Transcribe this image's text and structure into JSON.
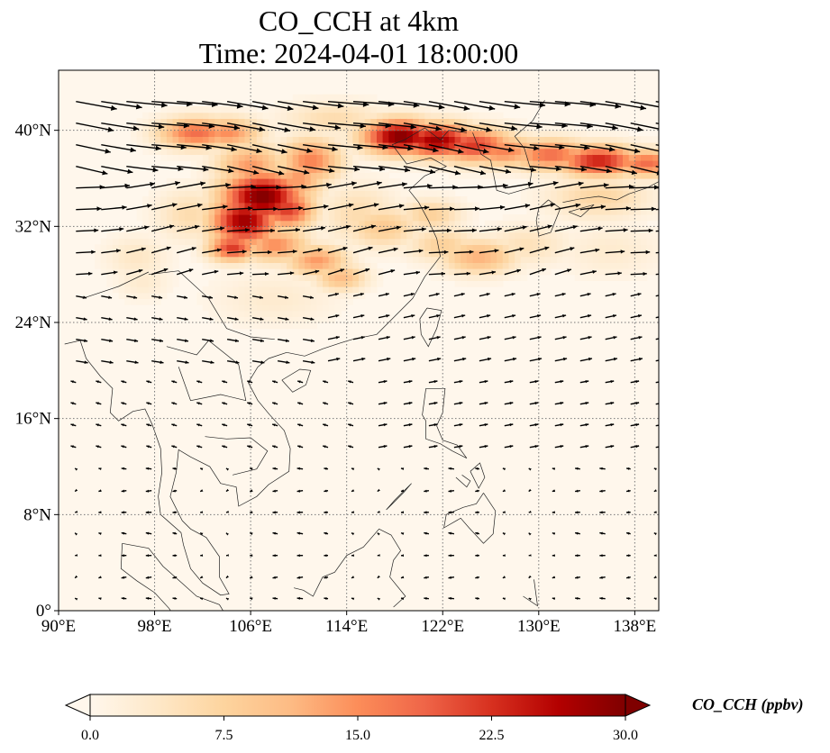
{
  "chart_data": {
    "type": "heatmap",
    "title": "CO_CCH at 4km",
    "subtitle": "Time: 2024-04-01 18:00:00",
    "xlabel": "",
    "ylabel": "",
    "xlim": [
      90,
      140
    ],
    "ylim": [
      0,
      45
    ],
    "x_ticks": [
      90,
      98,
      106,
      114,
      122,
      130,
      138
    ],
    "x_tick_labels": [
      "90°E",
      "98°E",
      "106°E",
      "114°E",
      "122°E",
      "130°E",
      "138°E"
    ],
    "y_ticks": [
      0,
      8,
      16,
      24,
      32,
      40
    ],
    "y_tick_labels": [
      "0°",
      "8°N",
      "16°N",
      "24°N",
      "32°N",
      "40°N"
    ],
    "grid": true,
    "colormap": "OrRd",
    "colormap_stops": [
      "#fff7ec",
      "#fee8c8",
      "#fdd49e",
      "#fdbb84",
      "#fc8d59",
      "#ef6548",
      "#d7301f",
      "#b30000",
      "#7f0000"
    ],
    "colorbar": {
      "label": "CO_CCH (ppbv)",
      "min": 0.0,
      "max": 30.0,
      "ticks": [
        0.0,
        7.5,
        15.0,
        22.5,
        30.0
      ],
      "tick_labels": [
        "0.0",
        "7.5",
        "15.0",
        "22.5",
        "30.0"
      ],
      "extend": "both",
      "orientation": "horizontal"
    },
    "plumes": [
      {
        "lon": 96.5,
        "lat": 29.5,
        "sx": 1.8,
        "sy": 1.2,
        "value": 4
      },
      {
        "lon": 97,
        "lat": 27.5,
        "sx": 1.6,
        "sy": 1.1,
        "value": 3
      },
      {
        "lon": 101.5,
        "lat": 39.8,
        "sx": 2.2,
        "sy": 0.9,
        "value": 18
      },
      {
        "lon": 104,
        "lat": 39.8,
        "sx": 2.0,
        "sy": 0.9,
        "value": 15
      },
      {
        "lon": 106,
        "lat": 37,
        "sx": 2.0,
        "sy": 1.4,
        "value": 14
      },
      {
        "lon": 107,
        "lat": 34.5,
        "sx": 2.4,
        "sy": 1.5,
        "value": 30
      },
      {
        "lon": 105.5,
        "lat": 32.5,
        "sx": 2.0,
        "sy": 1.5,
        "value": 28
      },
      {
        "lon": 109,
        "lat": 33.5,
        "sx": 1.6,
        "sy": 1.2,
        "value": 22
      },
      {
        "lon": 111,
        "lat": 37.5,
        "sx": 1.8,
        "sy": 1.3,
        "value": 16
      },
      {
        "lon": 110,
        "lat": 36,
        "sx": 1.5,
        "sy": 1.5,
        "value": 14
      },
      {
        "lon": 104.5,
        "lat": 30.3,
        "sx": 1.4,
        "sy": 0.8,
        "value": 22
      },
      {
        "lon": 108,
        "lat": 30.5,
        "sx": 2.0,
        "sy": 1.0,
        "value": 15
      },
      {
        "lon": 111.5,
        "lat": 29.2,
        "sx": 1.8,
        "sy": 0.9,
        "value": 14
      },
      {
        "lon": 113.5,
        "lat": 27.8,
        "sx": 1.5,
        "sy": 0.8,
        "value": 11
      },
      {
        "lon": 115,
        "lat": 33,
        "sx": 2.2,
        "sy": 1.8,
        "value": 6
      },
      {
        "lon": 117,
        "lat": 32,
        "sx": 2.2,
        "sy": 1.2,
        "value": 9
      },
      {
        "lon": 118.5,
        "lat": 39.5,
        "sx": 2.2,
        "sy": 1.0,
        "value": 30
      },
      {
        "lon": 121.5,
        "lat": 39.2,
        "sx": 2.4,
        "sy": 1.0,
        "value": 28
      },
      {
        "lon": 124.5,
        "lat": 38.8,
        "sx": 2.4,
        "sy": 1.0,
        "value": 22
      },
      {
        "lon": 127,
        "lat": 38.3,
        "sx": 2.4,
        "sy": 0.9,
        "value": 16
      },
      {
        "lon": 131,
        "lat": 38,
        "sx": 2.4,
        "sy": 0.9,
        "value": 18
      },
      {
        "lon": 135,
        "lat": 37.5,
        "sx": 2.4,
        "sy": 0.9,
        "value": 24
      },
      {
        "lon": 139,
        "lat": 37.3,
        "sx": 2.0,
        "sy": 0.8,
        "value": 18
      },
      {
        "lon": 121,
        "lat": 33,
        "sx": 1.8,
        "sy": 0.9,
        "value": 8
      },
      {
        "lon": 125,
        "lat": 29.5,
        "sx": 2.2,
        "sy": 1.0,
        "value": 12
      },
      {
        "lon": 122,
        "lat": 30.5,
        "sx": 2.0,
        "sy": 1.0,
        "value": 8
      },
      {
        "lon": 129,
        "lat": 30.5,
        "sx": 2.5,
        "sy": 1.2,
        "value": 5
      },
      {
        "lon": 136,
        "lat": 30,
        "sx": 3.0,
        "sy": 1.5,
        "value": 3
      },
      {
        "lon": 135,
        "lat": 34.5,
        "sx": 3.0,
        "sy": 1.3,
        "value": 7
      },
      {
        "lon": 113,
        "lat": 41,
        "sx": 3.0,
        "sy": 1.0,
        "value": 6
      },
      {
        "lon": 108,
        "lat": 26,
        "sx": 3.5,
        "sy": 1.5,
        "value": 3
      },
      {
        "lon": 101,
        "lat": 33,
        "sx": 2.0,
        "sy": 1.5,
        "value": 6
      }
    ]
  }
}
